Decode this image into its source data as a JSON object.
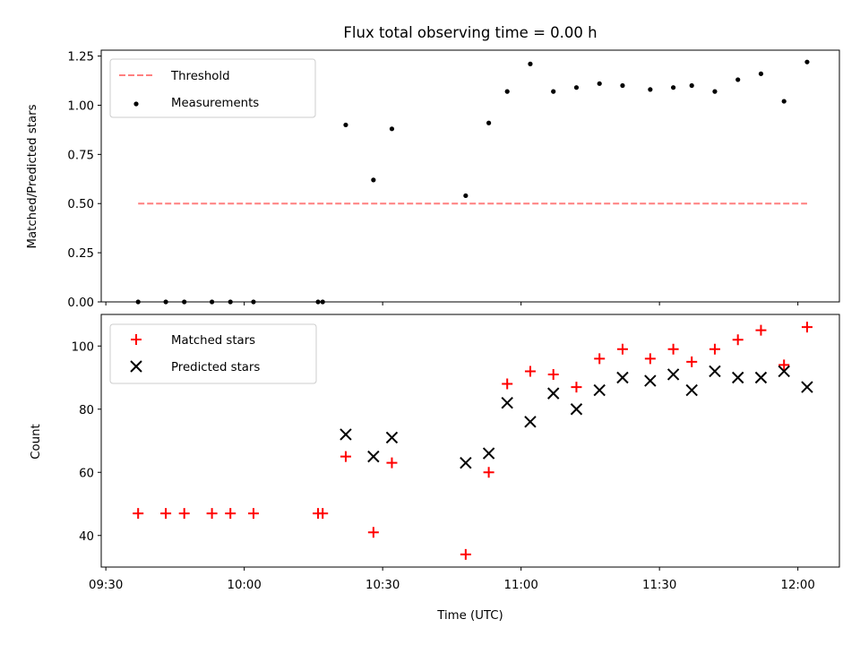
{
  "figure": {
    "title": "Flux total observing time = 0.00 h"
  },
  "colors": {
    "threshold": "#ff7f7f",
    "measurement": "#000000",
    "matched": "#ff0000",
    "predicted": "#000000"
  },
  "chart_data": [
    {
      "type": "scatter",
      "panel": "top",
      "xlabel": "",
      "ylabel": "Matched/Predicted stars",
      "xlim": [
        "09:29",
        "12:09"
      ],
      "ylim": [
        0,
        1.28
      ],
      "xticks": [
        "09:30",
        "10:00",
        "10:30",
        "11:00",
        "11:30",
        "12:00"
      ],
      "yticks": [
        0.0,
        0.25,
        0.5,
        0.75,
        1.0,
        1.25
      ],
      "ytick_labels": [
        "0.00",
        "0.25",
        "0.50",
        "0.75",
        "1.00",
        "1.25"
      ],
      "legend": {
        "position": "top-left",
        "entries": [
          "Threshold",
          "Measurements"
        ]
      },
      "series": [
        {
          "name": "Threshold",
          "kind": "dashed-line",
          "x": [
            "09:37",
            "12:02"
          ],
          "y": [
            0.5,
            0.5
          ]
        },
        {
          "name": "Measurements",
          "kind": "dot",
          "x": [
            "09:37",
            "09:43",
            "09:47",
            "09:53",
            "09:57",
            "10:02",
            "10:16",
            "10:17",
            "10:22",
            "10:28",
            "10:32",
            "10:48",
            "10:53",
            "10:57",
            "11:02",
            "11:07",
            "11:12",
            "11:17",
            "11:22",
            "11:28",
            "11:33",
            "11:37",
            "11:42",
            "11:47",
            "11:52",
            "11:57",
            "12:02"
          ],
          "y": [
            0.0,
            0.0,
            0.0,
            0.0,
            0.0,
            0.0,
            0.0,
            0.0,
            0.9,
            0.62,
            0.88,
            0.54,
            0.91,
            1.07,
            1.21,
            1.07,
            1.09,
            1.11,
            1.1,
            1.08,
            1.09,
            1.1,
            1.07,
            1.13,
            1.16,
            1.02,
            1.22
          ]
        }
      ]
    },
    {
      "type": "scatter",
      "panel": "bottom",
      "xlabel": "Time (UTC)",
      "ylabel": "Count",
      "xlim": [
        "09:29",
        "12:09"
      ],
      "ylim": [
        30,
        110
      ],
      "xticks": [
        "09:30",
        "10:00",
        "10:30",
        "11:00",
        "11:30",
        "12:00"
      ],
      "yticks": [
        40,
        60,
        80,
        100
      ],
      "ytick_labels": [
        "40",
        "60",
        "80",
        "100"
      ],
      "legend": {
        "position": "top-left",
        "entries": [
          "Matched stars",
          "Predicted stars"
        ]
      },
      "series": [
        {
          "name": "Matched stars",
          "kind": "plus",
          "x": [
            "09:37",
            "09:43",
            "09:47",
            "09:53",
            "09:57",
            "10:02",
            "10:16",
            "10:17",
            "10:22",
            "10:28",
            "10:32",
            "10:48",
            "10:53",
            "10:57",
            "11:02",
            "11:07",
            "11:12",
            "11:17",
            "11:22",
            "11:28",
            "11:33",
            "11:37",
            "11:42",
            "11:47",
            "11:52",
            "11:57",
            "12:02"
          ],
          "y": [
            47,
            47,
            47,
            47,
            47,
            47,
            47,
            47,
            65,
            41,
            63,
            34,
            60,
            88,
            92,
            91,
            87,
            96,
            99,
            96,
            99,
            95,
            99,
            102,
            105,
            94,
            106
          ]
        },
        {
          "name": "Predicted stars",
          "kind": "x",
          "x": [
            "10:22",
            "10:28",
            "10:32",
            "10:48",
            "10:53",
            "10:57",
            "11:02",
            "11:07",
            "11:12",
            "11:17",
            "11:22",
            "11:28",
            "11:33",
            "11:37",
            "11:42",
            "11:47",
            "11:52",
            "11:57",
            "12:02"
          ],
          "y": [
            72,
            65,
            71,
            63,
            66,
            82,
            76,
            85,
            80,
            86,
            90,
            89,
            91,
            86,
            92,
            90,
            90,
            92,
            87
          ]
        }
      ]
    }
  ]
}
